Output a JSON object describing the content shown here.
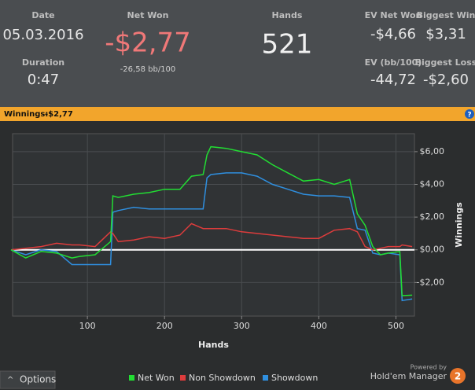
{
  "stats": [
    {
      "label": "Date",
      "value": "05.03.2016"
    },
    {
      "label": "Duration",
      "value": "0:47"
    },
    {
      "label": "Net Won",
      "value": "-$2,77",
      "sub": "-26,58 bb/100"
    },
    {
      "label": "Hands",
      "value": "521"
    },
    {
      "label": "EV Net Won",
      "value": "-$4,66"
    },
    {
      "label": "Biggest Win",
      "value": "$3,31"
    },
    {
      "label": "EV (bb/100)",
      "value": "-44,72"
    },
    {
      "label": "Biggest Loss",
      "value": "-$2,60"
    }
  ],
  "banner": {
    "label": "Winnings:",
    "value": "-$2,77"
  },
  "chart_data": {
    "type": "line",
    "x_label": "Hands",
    "y_label": "Winnings",
    "x": [
      1,
      20,
      40,
      60,
      80,
      90,
      110,
      130,
      133,
      140,
      160,
      180,
      200,
      220,
      235,
      250,
      255,
      260,
      280,
      300,
      320,
      340,
      360,
      380,
      400,
      420,
      440,
      450,
      460,
      470,
      480,
      490,
      505,
      508,
      521
    ],
    "series": [
      {
        "name": "Net Won",
        "color": "#22dd33",
        "values": [
          0,
          -0.5,
          -0.1,
          -0.2,
          -0.5,
          -0.4,
          -0.3,
          0.5,
          3.3,
          3.2,
          3.4,
          3.5,
          3.7,
          3.7,
          4.5,
          4.6,
          5.8,
          6.3,
          6.2,
          6.0,
          5.8,
          5.2,
          4.7,
          4.2,
          4.3,
          4.0,
          4.3,
          2.2,
          1.5,
          0.2,
          -0.3,
          -0.2,
          -0.1,
          -2.8,
          -2.77
        ]
      },
      {
        "name": "Non Showdown",
        "color": "#dd3c3c",
        "values": [
          0,
          0.1,
          0.2,
          0.4,
          0.3,
          0.3,
          0.2,
          1.1,
          1.0,
          0.5,
          0.6,
          0.8,
          0.7,
          0.9,
          1.6,
          1.3,
          1.3,
          1.3,
          1.3,
          1.1,
          1.0,
          0.9,
          0.8,
          0.7,
          0.7,
          1.2,
          1.3,
          1.1,
          0.2,
          0,
          0.1,
          0.2,
          0.2,
          0.3,
          0.2
        ]
      },
      {
        "name": "Showdown",
        "color": "#2f8fdf",
        "values": [
          0,
          -0.3,
          0,
          -0.1,
          -0.9,
          -0.9,
          -0.9,
          -0.9,
          2.3,
          2.4,
          2.6,
          2.5,
          2.5,
          2.5,
          2.5,
          2.5,
          4.4,
          4.6,
          4.7,
          4.7,
          4.5,
          4.0,
          3.7,
          3.4,
          3.3,
          3.3,
          3.2,
          1.3,
          1.2,
          -0.2,
          -0.3,
          -0.2,
          -0.3,
          -3.1,
          -3.0
        ]
      }
    ],
    "xlim": [
      3,
      524
    ],
    "ylim": [
      -4.05,
      7.1
    ],
    "xticks": [
      100,
      200,
      300,
      400,
      500
    ],
    "yticks": [
      {
        "value": 6,
        "label": "$6,00"
      },
      {
        "value": 4,
        "label": "$4,00"
      },
      {
        "value": 2,
        "label": "$2,00"
      },
      {
        "value": 0,
        "label": "$0,00"
      },
      {
        "value": -2,
        "label": "-$2,00"
      }
    ],
    "grid": true
  },
  "options": "Options",
  "powered_by": "Powered by",
  "brand": "Hold'em Manager"
}
